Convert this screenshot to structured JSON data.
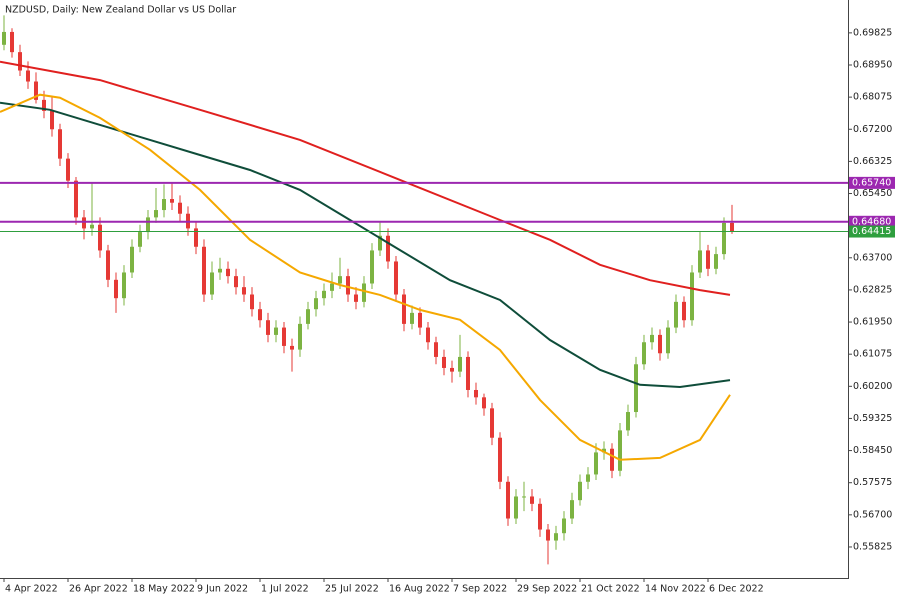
{
  "chart_data": {
    "type": "candlestick",
    "title": "NZDUSD, Daily:  New Zealand Dollar vs US Dollar",
    "up_color": "#7cb342",
    "down_color": "#e53935",
    "xlim": [
      -0.5,
      105.5
    ],
    "ylim": [
      0.5498,
      0.7072
    ],
    "xticks": [
      {
        "value": 0,
        "label": "4 Apr 2022"
      },
      {
        "value": 8,
        "label": "26 Apr 2022"
      },
      {
        "value": 16,
        "label": "18 May 2022"
      },
      {
        "value": 24,
        "label": "9 Jun 2022"
      },
      {
        "value": 32,
        "label": "1 Jul 2022"
      },
      {
        "value": 40,
        "label": "25 Jul 2022"
      },
      {
        "value": 48,
        "label": "16 Aug 2022"
      },
      {
        "value": 56,
        "label": "7 Sep 2022"
      },
      {
        "value": 64,
        "label": "29 Sep 2022"
      },
      {
        "value": 72,
        "label": "21 Oct 2022"
      },
      {
        "value": 80,
        "label": "14 Nov 2022"
      },
      {
        "value": 88,
        "label": "6 Dec 2022"
      }
    ],
    "yticks": [
      0.69825,
      {
        "value": 0.6895,
        "label": "0.68950"
      },
      0.68075,
      {
        "value": 0.672,
        "label": "0.67200"
      },
      0.66325,
      {
        "value": 0.6545,
        "label": "0.65450"
      },
      {
        "value": 0.637,
        "label": "0.63700"
      },
      0.62825,
      {
        "value": 0.6195,
        "label": "0.61950"
      },
      0.61075,
      {
        "value": 0.602,
        "label": "0.60200"
      },
      0.59325,
      {
        "value": 0.5845,
        "label": "0.58450"
      },
      0.57575,
      {
        "value": 0.567,
        "label": "0.56700"
      },
      0.55825
    ],
    "levels": [
      {
        "value": 0.6574,
        "label": "0.65740",
        "color": "#9c27b0"
      },
      {
        "value": 0.6468,
        "label": "0.64680",
        "color": "#9c27b0"
      },
      {
        "value": 0.64415,
        "label": "0.64415",
        "color": "#2e9e3e"
      }
    ],
    "candles": [
      [
        0.695,
        0.703,
        0.6935,
        0.6985
      ],
      [
        0.6985,
        0.6995,
        0.6915,
        0.693
      ],
      [
        0.693,
        0.695,
        0.6865,
        0.688
      ],
      [
        0.688,
        0.6905,
        0.683,
        0.685
      ],
      [
        0.685,
        0.6875,
        0.679,
        0.68
      ],
      [
        0.68,
        0.6825,
        0.675,
        0.677
      ],
      [
        0.677,
        0.681,
        0.67,
        0.672
      ],
      [
        0.672,
        0.6735,
        0.662,
        0.664
      ],
      [
        0.664,
        0.6655,
        0.656,
        0.658
      ],
      [
        0.658,
        0.659,
        0.646,
        0.648
      ],
      [
        0.648,
        0.65,
        0.642,
        0.645
      ],
      [
        0.645,
        0.6575,
        0.643,
        0.646
      ],
      [
        0.646,
        0.648,
        0.637,
        0.639
      ],
      [
        0.639,
        0.6405,
        0.629,
        0.631
      ],
      [
        0.631,
        0.633,
        0.622,
        0.626
      ],
      [
        0.626,
        0.635,
        0.624,
        0.633
      ],
      [
        0.633,
        0.642,
        0.6315,
        0.64
      ],
      [
        0.64,
        0.646,
        0.6385,
        0.644
      ],
      [
        0.644,
        0.65,
        0.642,
        0.648
      ],
      [
        0.648,
        0.656,
        0.6465,
        0.65
      ],
      [
        0.65,
        0.657,
        0.648,
        0.653
      ],
      [
        0.653,
        0.6575,
        0.65,
        0.652
      ],
      [
        0.652,
        0.654,
        0.647,
        0.649
      ],
      [
        0.649,
        0.651,
        0.643,
        0.645
      ],
      [
        0.645,
        0.647,
        0.638,
        0.64
      ],
      [
        0.64,
        0.642,
        0.625,
        0.627
      ],
      [
        0.627,
        0.636,
        0.6255,
        0.633
      ],
      [
        0.633,
        0.637,
        0.631,
        0.634
      ],
      [
        0.634,
        0.636,
        0.63,
        0.632
      ],
      [
        0.632,
        0.634,
        0.627,
        0.629
      ],
      [
        0.629,
        0.632,
        0.625,
        0.627
      ],
      [
        0.627,
        0.629,
        0.621,
        0.623
      ],
      [
        0.623,
        0.625,
        0.618,
        0.62
      ],
      [
        0.62,
        0.622,
        0.614,
        0.616
      ],
      [
        0.616,
        0.62,
        0.614,
        0.618
      ],
      [
        0.618,
        0.6195,
        0.611,
        0.613
      ],
      [
        0.613,
        0.615,
        0.606,
        0.612
      ],
      [
        0.612,
        0.621,
        0.61,
        0.619
      ],
      [
        0.619,
        0.625,
        0.6175,
        0.623
      ],
      [
        0.623,
        0.628,
        0.621,
        0.626
      ],
      [
        0.626,
        0.63,
        0.624,
        0.628
      ],
      [
        0.628,
        0.633,
        0.626,
        0.63
      ],
      [
        0.63,
        0.637,
        0.6285,
        0.632
      ],
      [
        0.632,
        0.634,
        0.625,
        0.627
      ],
      [
        0.627,
        0.629,
        0.623,
        0.625
      ],
      [
        0.625,
        0.632,
        0.6235,
        0.63
      ],
      [
        0.63,
        0.641,
        0.6285,
        0.639
      ],
      [
        0.639,
        0.647,
        0.6375,
        0.643
      ],
      [
        0.643,
        0.645,
        0.634,
        0.636
      ],
      [
        0.636,
        0.6375,
        0.625,
        0.627
      ],
      [
        0.627,
        0.6285,
        0.617,
        0.619
      ],
      [
        0.619,
        0.624,
        0.6175,
        0.622
      ],
      [
        0.622,
        0.6235,
        0.616,
        0.618
      ],
      [
        0.618,
        0.6195,
        0.612,
        0.614
      ],
      [
        0.614,
        0.6155,
        0.608,
        0.61
      ],
      [
        0.61,
        0.612,
        0.605,
        0.607
      ],
      [
        0.607,
        0.609,
        0.603,
        0.606
      ],
      [
        0.606,
        0.616,
        0.6045,
        0.61
      ],
      [
        0.61,
        0.6115,
        0.599,
        0.601
      ],
      [
        0.601,
        0.603,
        0.597,
        0.599
      ],
      [
        0.599,
        0.6,
        0.594,
        0.596
      ],
      [
        0.596,
        0.5975,
        0.586,
        0.588
      ],
      [
        0.588,
        0.5895,
        0.574,
        0.576
      ],
      [
        0.576,
        0.5775,
        0.564,
        0.566
      ],
      [
        0.566,
        0.574,
        0.5645,
        0.572
      ],
      [
        0.572,
        0.576,
        0.568,
        0.572
      ],
      [
        0.572,
        0.574,
        0.568,
        0.57
      ],
      [
        0.57,
        0.5715,
        0.561,
        0.563
      ],
      [
        0.563,
        0.5645,
        0.5535,
        0.56
      ],
      [
        0.56,
        0.564,
        0.5575,
        0.562
      ],
      [
        0.562,
        0.568,
        0.56,
        0.566
      ],
      [
        0.566,
        0.573,
        0.5645,
        0.571
      ],
      [
        0.571,
        0.578,
        0.5695,
        0.576
      ],
      [
        0.576,
        0.58,
        0.574,
        0.578
      ],
      [
        0.578,
        0.5865,
        0.5765,
        0.584
      ],
      [
        0.584,
        0.587,
        0.582,
        0.585
      ],
      [
        0.585,
        0.5865,
        0.577,
        0.579
      ],
      [
        0.579,
        0.592,
        0.5775,
        0.59
      ],
      [
        0.59,
        0.597,
        0.5885,
        0.595
      ],
      [
        0.595,
        0.61,
        0.5935,
        0.608
      ],
      [
        0.608,
        0.616,
        0.6065,
        0.614
      ],
      [
        0.614,
        0.618,
        0.612,
        0.616
      ],
      [
        0.616,
        0.6175,
        0.609,
        0.611
      ],
      [
        0.611,
        0.62,
        0.6095,
        0.618
      ],
      [
        0.618,
        0.627,
        0.6165,
        0.625
      ],
      [
        0.625,
        0.6265,
        0.618,
        0.62
      ],
      [
        0.62,
        0.635,
        0.6185,
        0.633
      ],
      [
        0.633,
        0.644,
        0.6315,
        0.639
      ],
      [
        0.639,
        0.6405,
        0.632,
        0.634
      ],
      [
        0.634,
        0.64,
        0.6325,
        0.638
      ],
      [
        0.638,
        0.648,
        0.6365,
        0.6465
      ],
      [
        0.6465,
        0.6514,
        0.6435,
        0.6441
      ]
    ],
    "lines": [
      {
        "color": "#e0201f",
        "x": [
          -0.5,
          12,
          24.5,
          37,
          49.5,
          62,
          68.25,
          74.5,
          80.75,
          87,
          90.75
        ],
        "values": [
          0.6904,
          0.6854,
          0.6773,
          0.6691,
          0.6582,
          0.6473,
          0.6419,
          0.6351,
          0.6309,
          0.6282,
          0.6269
        ]
      },
      {
        "color": "#0f4d3a",
        "x": [
          -0.5,
          5.75,
          12,
          18.25,
          24.5,
          30.75,
          37,
          43.25,
          49.5,
          55.75,
          62,
          68.25,
          74.5,
          79.5,
          84.5,
          90.75
        ],
        "values": [
          0.6792,
          0.6773,
          0.6732,
          0.6691,
          0.665,
          0.6609,
          0.6555,
          0.6473,
          0.6391,
          0.6309,
          0.6255,
          0.6146,
          0.6065,
          0.6024,
          0.6018,
          0.6037
        ]
      },
      {
        "color": "#f5a800",
        "x": [
          -0.5,
          4.5,
          7,
          12,
          18.25,
          24.5,
          30.75,
          37,
          42,
          47,
          52,
          57,
          62,
          67,
          72,
          77,
          82,
          87,
          90.75
        ],
        "values": [
          0.6767,
          0.6814,
          0.6806,
          0.6751,
          0.6664,
          0.6555,
          0.6419,
          0.633,
          0.6296,
          0.6269,
          0.6228,
          0.6201,
          0.6119,
          0.5983,
          0.5874,
          0.582,
          0.5825,
          0.5874,
          0.5997
        ]
      }
    ]
  }
}
